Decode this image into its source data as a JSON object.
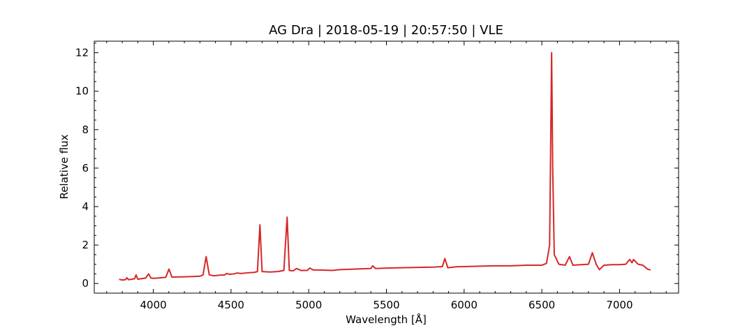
{
  "chart_data": {
    "type": "line",
    "title": "AG Dra | 2018-05-19 | 20:57:50 | VLE",
    "xlabel": "Wavelength [Å]",
    "ylabel": "Relative flux",
    "xlim": [
      3620,
      7380
    ],
    "ylim": [
      -0.5,
      12.6
    ],
    "x_ticks": [
      4000,
      4500,
      5000,
      5500,
      6000,
      6500,
      7000
    ],
    "x_tick_labels": [
      "4000",
      "4500",
      "5000",
      "5500",
      "6000",
      "6500",
      "7000"
    ],
    "y_ticks": [
      0,
      2,
      4,
      6,
      8,
      10,
      12
    ],
    "y_tick_labels": [
      "0",
      "2",
      "4",
      "6",
      "8",
      "10",
      "12"
    ],
    "grid": false,
    "line_color": "#d62728",
    "series": [
      {
        "x": [
          3780,
          3800,
          3820,
          3830,
          3840,
          3860,
          3880,
          3889,
          3900,
          3920,
          3950,
          3970,
          3985,
          4000,
          4020,
          4050,
          4080,
          4101,
          4120,
          4150,
          4200,
          4250,
          4300,
          4320,
          4340,
          4360,
          4390,
          4420,
          4460,
          4471,
          4490,
          4520,
          4541,
          4560,
          4600,
          4650,
          4670,
          4686,
          4700,
          4750,
          4800,
          4840,
          4861,
          4875,
          4900,
          4921,
          4950,
          4990,
          5007,
          5030,
          5080,
          5150,
          5200,
          5300,
          5400,
          5411,
          5430,
          5500,
          5600,
          5700,
          5800,
          5860,
          5876,
          5895,
          5950,
          6000,
          6100,
          6200,
          6300,
          6400,
          6500,
          6530,
          6550,
          6556,
          6563,
          6570,
          6580,
          6610,
          6650,
          6678,
          6700,
          6750,
          6800,
          6825,
          6850,
          6870,
          6900,
          6950,
          7000,
          7040,
          7065,
          7080,
          7090,
          7120,
          7150,
          7180,
          7200
        ],
        "y": [
          0.22,
          0.18,
          0.2,
          0.3,
          0.2,
          0.22,
          0.25,
          0.45,
          0.22,
          0.25,
          0.28,
          0.5,
          0.28,
          0.27,
          0.28,
          0.3,
          0.32,
          0.75,
          0.33,
          0.34,
          0.35,
          0.36,
          0.38,
          0.45,
          1.4,
          0.45,
          0.4,
          0.43,
          0.45,
          0.52,
          0.48,
          0.5,
          0.55,
          0.52,
          0.55,
          0.58,
          0.62,
          3.05,
          0.62,
          0.6,
          0.62,
          0.68,
          3.45,
          0.68,
          0.66,
          0.78,
          0.68,
          0.68,
          0.8,
          0.7,
          0.7,
          0.68,
          0.72,
          0.75,
          0.78,
          0.92,
          0.78,
          0.8,
          0.82,
          0.84,
          0.85,
          0.88,
          1.3,
          0.82,
          0.87,
          0.88,
          0.9,
          0.92,
          0.92,
          0.95,
          0.95,
          1.05,
          2.0,
          6.5,
          12.0,
          6.0,
          1.5,
          1.0,
          0.95,
          1.4,
          0.95,
          0.98,
          1.0,
          1.6,
          1.0,
          0.72,
          0.95,
          0.98,
          0.98,
          1.0,
          1.25,
          1.08,
          1.25,
          1.0,
          0.95,
          0.75,
          0.7
        ]
      }
    ]
  }
}
